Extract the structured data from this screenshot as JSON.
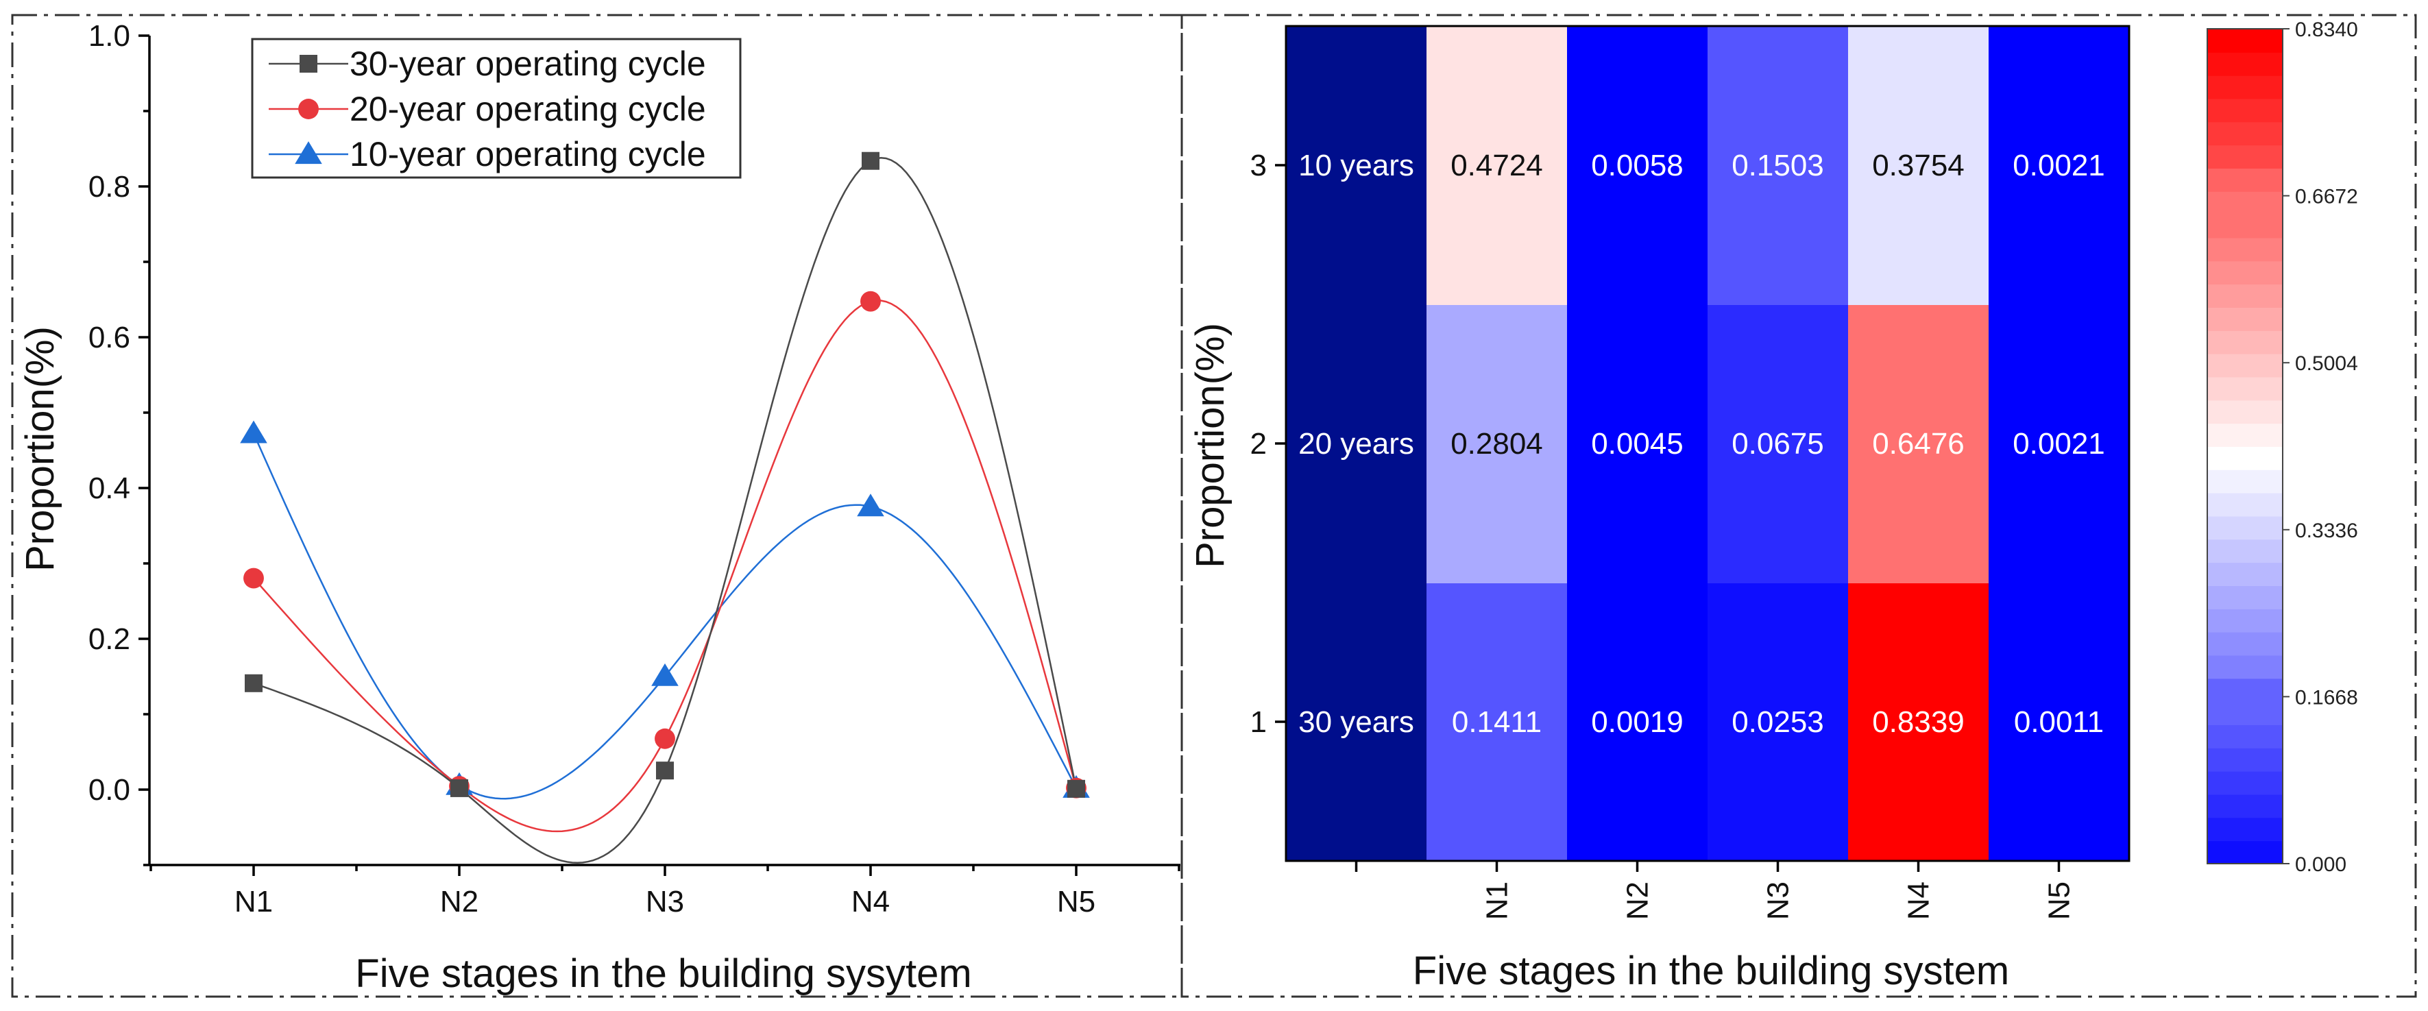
{
  "chart_data": [
    {
      "type": "line",
      "xlabel": "Five stages in the building sysytem",
      "ylabel": "Proportion(%)",
      "categories": [
        "N1",
        "N2",
        "N3",
        "N4",
        "N5"
      ],
      "ylim": [
        -0.1,
        1.0
      ],
      "yticks": [
        "0.0",
        "0.2",
        "0.4",
        "0.6",
        "0.8",
        "1.0"
      ],
      "legend_position": "top-left",
      "series": [
        {
          "name": "30-year operating cycle",
          "marker": "square",
          "color": "#4a4a4a",
          "values": [
            0.1411,
            0.0019,
            0.0253,
            0.8339,
            0.0011
          ]
        },
        {
          "name": "20-year operating cycle",
          "marker": "circle",
          "color": "#e8383d",
          "values": [
            0.2804,
            0.0045,
            0.0675,
            0.6476,
            0.0021
          ]
        },
        {
          "name": "10-year operating cycle",
          "marker": "triangle",
          "color": "#1f6fd6",
          "values": [
            0.4724,
            0.0058,
            0.1503,
            0.3754,
            0.0021
          ]
        }
      ]
    },
    {
      "type": "heatmap",
      "xlabel": "Five stages in the building system",
      "ylabel": "Proportion(%)",
      "x_categories": [
        "N1",
        "N2",
        "N3",
        "N4",
        "N5"
      ],
      "y_ticks": [
        "1",
        "2",
        "3"
      ],
      "row_labels": [
        "30 years",
        "20 years",
        "10 years"
      ],
      "rows": [
        {
          "label": "30 years",
          "values": [
            0.1411,
            0.0019,
            0.0253,
            0.8339,
            0.0011
          ],
          "display": [
            "0.1411",
            "0.0019",
            "0.0253",
            "0.8339",
            "0.0011"
          ]
        },
        {
          "label": "20 years",
          "values": [
            0.2804,
            0.0045,
            0.0675,
            0.6476,
            0.0021
          ],
          "display": [
            "0.2804",
            "0.0045",
            "0.0675",
            "0.6476",
            "0.0021"
          ]
        },
        {
          "label": "10 years",
          "values": [
            0.4724,
            0.0058,
            0.1503,
            0.3754,
            0.0021
          ],
          "display": [
            "0.4724",
            "0.0058",
            "0.1503",
            "0.3754",
            "0.0021"
          ]
        }
      ],
      "label_column_color": "#000e8c",
      "colorscale": {
        "min": 0.0,
        "max": 0.834,
        "low_color": "#0000ff",
        "mid_color": "#ffffff",
        "high_color": "#ff0000"
      },
      "colorbar_ticks": [
        "0.000",
        "0.1668",
        "0.3336",
        "0.5004",
        "0.6672",
        "0.8340"
      ]
    }
  ]
}
